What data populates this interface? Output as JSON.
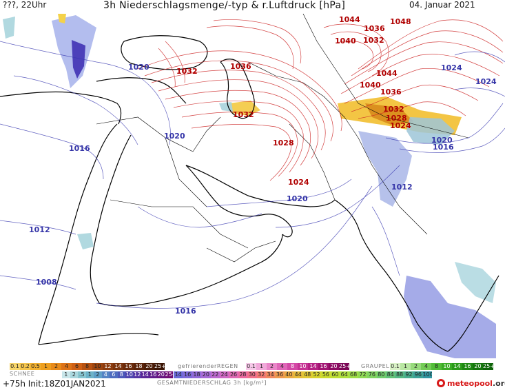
{
  "header": {
    "location": "???, 22Uhr",
    "title": "3h Niederschlagsmenge/-typ & r.Luftdruck [hPa]",
    "date": "04. Januar 2021"
  },
  "isobars": {
    "labels_red": [
      "1044",
      "1048",
      "1036",
      "1040",
      "1032",
      "1032",
      "1036",
      "1044",
      "1040",
      "1036",
      "1032",
      "1028",
      "1024",
      "1032",
      "1028",
      "1024"
    ],
    "labels_blue": [
      "1024",
      "1024",
      "1020",
      "1020",
      "1016",
      "1020",
      "1016",
      "1012",
      "1012",
      "1008",
      "1016",
      "1020"
    ]
  },
  "legend": {
    "rain_scale": [
      "0.1",
      "0.2",
      "0.5",
      "1",
      "2",
      "4",
      "6",
      "8",
      "10",
      "12",
      "14",
      "16",
      "18",
      "20",
      "25+"
    ],
    "rain_colors": [
      "#f7d56a",
      "#f5c54d",
      "#f1b030",
      "#ee9f1f",
      "#e88a1a",
      "#dd7318",
      "#cf6015",
      "#b75212",
      "#9e4610",
      "#8c3c0e",
      "#7a330c",
      "#6a2a0a",
      "#5a2208",
      "#4a1b06",
      "#3a1404"
    ],
    "freezing_title": "gefrierenderREGEN",
    "freezing_scale": [
      "0.1",
      "1",
      "2",
      "4",
      "8",
      "10",
      "14",
      "16",
      "20",
      "25+"
    ],
    "freezing_colors": [
      "#f7c9e9",
      "#f1a9da",
      "#ea86c9",
      "#e066b8",
      "#d448a6",
      "#c63294",
      "#b52183",
      "#a11472",
      "#8c0b62",
      "#7a0654"
    ],
    "graupel_title": "GRAUPEL",
    "graupel_scale": [
      "0.1",
      "1",
      "2",
      "4",
      "8",
      "10",
      "14",
      "16",
      "20",
      "25+"
    ],
    "graupel_colors": [
      "#d9f2c6",
      "#b9e7a2",
      "#97da7c",
      "#74cc56",
      "#52bd38",
      "#3aac25",
      "#2a9a19",
      "#1e8812",
      "#15760d",
      "#0e6409"
    ],
    "snow_title": "SCHNEE",
    "snow_scale": [
      "1",
      "2",
      ".5",
      "1",
      "2",
      "4",
      "6",
      "8",
      "10",
      "12",
      "14",
      "16",
      "20",
      "25+"
    ],
    "snow_colors": [
      "#c9e6ea",
      "#a9d7de",
      "#87c6d1",
      "#6db3c9",
      "#5e9fc7",
      "#5484c4",
      "#4d6cc0",
      "#4b57b9",
      "#4e43ae",
      "#5333a3",
      "#5a2797",
      "#611c8b",
      "#681480",
      "#6f0c74"
    ],
    "total_title": "GESAMTNIEDERSCHLAG 3h [kg/m²]",
    "total_scale": [
      "14",
      "16",
      "18",
      "20",
      "22",
      "24",
      "26",
      "28",
      "30",
      "32",
      "34",
      "36",
      "40",
      "44",
      "48",
      "52",
      "56",
      "60",
      "64",
      "68",
      "72",
      "76",
      "80",
      "84",
      "88",
      "92",
      "96",
      "100"
    ],
    "total_colors": [
      "#6a6ad8",
      "#7e6ad8",
      "#926ad8",
      "#a86ad8",
      "#bd6ad0",
      "#d06ac4",
      "#e06ab5",
      "#ec6aa0",
      "#f2718a",
      "#f37c74",
      "#f28a60",
      "#ef9a50",
      "#ebaa44",
      "#e6ba3a",
      "#e0c834",
      "#d7d430",
      "#cbdc30",
      "#bde036",
      "#aee03e",
      "#9fde48",
      "#8fda54",
      "#80d460",
      "#70cc6c",
      "#62c278",
      "#55b884",
      "#48ad8e",
      "#3ca298",
      "#3196a2"
    ]
  },
  "footer": {
    "run": "+75h Init:18Z01JAN2021",
    "logo_name": "meteopool",
    "logo_domain": ".org"
  }
}
